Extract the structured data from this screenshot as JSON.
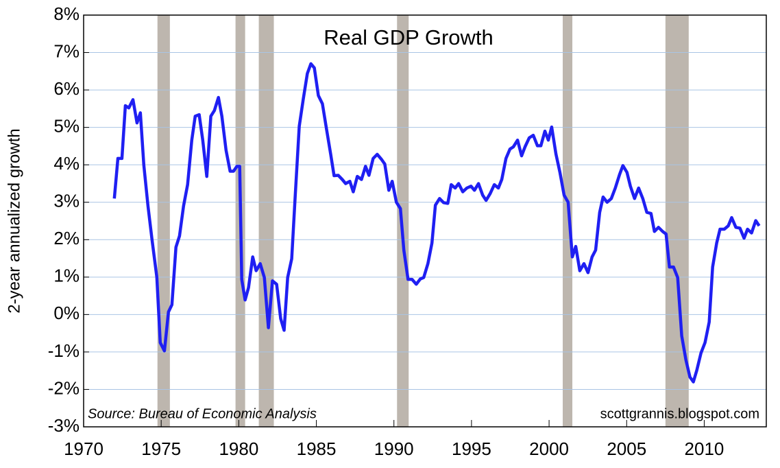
{
  "chart_data": {
    "type": "line",
    "title": "Real GDP Growth",
    "y_label": "2-year annualized growth",
    "annotations": [
      "Source:  Bureau of Economic Analysis",
      "scottgrannis.blogspot.com"
    ],
    "color": "#1f1ff2",
    "grid": true,
    "grid_color": "#a9c4e4",
    "shade_color": "#bdb6ae",
    "xlim": [
      1970,
      2014
    ],
    "ylim": [
      -3,
      8
    ],
    "xticks": [
      1970,
      1975,
      1980,
      1985,
      1990,
      1995,
      2000,
      2005,
      2010
    ],
    "yticks": [
      {
        "value": -3,
        "label": "-3%"
      },
      {
        "value": -2,
        "label": "-2%"
      },
      {
        "value": -1,
        "label": "-1%"
      },
      {
        "value": 0,
        "label": "0%"
      },
      {
        "value": 1,
        "label": "1%"
      },
      {
        "value": 2,
        "label": "2%"
      },
      {
        "value": 3,
        "label": "3%"
      },
      {
        "value": 4,
        "label": "4%"
      },
      {
        "value": 5,
        "label": "5%"
      },
      {
        "value": 6,
        "label": "6%"
      },
      {
        "value": 7,
        "label": "7%"
      },
      {
        "value": 8,
        "label": "8%"
      }
    ],
    "shaded_periods": [
      [
        1974.76,
        1975.56
      ],
      [
        1979.79,
        1980.41
      ],
      [
        1981.29,
        1982.26
      ],
      [
        1990.2,
        1990.95
      ],
      [
        2000.88,
        2001.5
      ],
      [
        2007.5,
        2009.0
      ]
    ],
    "x": [
      1971.98,
      1972.21,
      1972.47,
      1972.69,
      1972.91,
      1973.18,
      1973.44,
      1973.66,
      1973.88,
      1974.15,
      1974.41,
      1974.72,
      1974.94,
      1975.21,
      1975.47,
      1975.69,
      1975.95,
      1976.18,
      1976.44,
      1976.7,
      1976.97,
      1977.19,
      1977.45,
      1977.68,
      1977.94,
      1978.2,
      1978.43,
      1978.69,
      1978.91,
      1979.18,
      1979.44,
      1979.66,
      1979.88,
      1980.06,
      1980.19,
      1980.41,
      1980.63,
      1980.9,
      1981.12,
      1981.38,
      1981.65,
      1981.91,
      1982.17,
      1982.44,
      1982.7,
      1982.92,
      1983.15,
      1983.41,
      1983.63,
      1983.9,
      1984.16,
      1984.42,
      1984.65,
      1984.87,
      1985.13,
      1985.39,
      1985.66,
      1985.92,
      1986.14,
      1986.41,
      1986.67,
      1986.89,
      1987.16,
      1987.38,
      1987.64,
      1987.91,
      1988.17,
      1988.39,
      1988.66,
      1988.92,
      1989.19,
      1989.41,
      1989.67,
      1989.89,
      1990.16,
      1990.42,
      1990.64,
      1990.91,
      1991.17,
      1991.44,
      1991.7,
      1991.92,
      1992.19,
      1992.45,
      1992.67,
      1992.94,
      1993.2,
      1993.47,
      1993.69,
      1993.95,
      1994.17,
      1994.44,
      1994.7,
      1994.97,
      1995.19,
      1995.45,
      1995.72,
      1995.94,
      1996.2,
      1996.47,
      1996.73,
      1996.95,
      1997.22,
      1997.48,
      1997.7,
      1997.97,
      1998.23,
      1998.45,
      1998.72,
      1998.98,
      1999.25,
      1999.47,
      1999.73,
      1999.95,
      2000.17,
      2000.44,
      2000.7,
      2000.97,
      2001.23,
      2001.5,
      2001.72,
      2001.98,
      2002.25,
      2002.51,
      2002.77,
      2003.0,
      2003.26,
      2003.48,
      2003.74,
      2004.01,
      2004.27,
      2004.54,
      2004.76,
      2005.02,
      2005.24,
      2005.51,
      2005.77,
      2006.04,
      2006.3,
      2006.57,
      2006.79,
      2007.05,
      2007.32,
      2007.54,
      2007.76,
      2008.02,
      2008.29,
      2008.55,
      2008.82,
      2009.08,
      2009.3,
      2009.52,
      2009.79,
      2010.05,
      2010.32,
      2010.54,
      2010.8,
      2011.02,
      2011.29,
      2011.55,
      2011.77,
      2012.04,
      2012.3,
      2012.57,
      2012.79,
      2013.05,
      2013.32,
      2013.54
    ],
    "values": [
      3.1,
      4.17,
      4.17,
      5.58,
      5.52,
      5.74,
      5.12,
      5.39,
      4.0,
      2.9,
      2.0,
      1.0,
      -0.75,
      -0.97,
      0.07,
      0.26,
      1.8,
      2.1,
      2.9,
      3.47,
      4.66,
      5.3,
      5.34,
      4.66,
      3.69,
      5.3,
      5.45,
      5.8,
      5.3,
      4.39,
      3.83,
      3.83,
      3.96,
      3.96,
      0.94,
      0.39,
      0.72,
      1.54,
      1.17,
      1.36,
      0.99,
      -0.35,
      0.9,
      0.81,
      -0.11,
      -0.42,
      0.99,
      1.49,
      3.1,
      5.03,
      5.76,
      6.44,
      6.7,
      6.59,
      5.85,
      5.63,
      4.94,
      4.29,
      3.71,
      3.72,
      3.61,
      3.5,
      3.56,
      3.28,
      3.69,
      3.61,
      3.96,
      3.72,
      4.17,
      4.28,
      4.15,
      4.02,
      3.32,
      3.56,
      3.0,
      2.83,
      1.72,
      0.94,
      0.94,
      0.81,
      0.95,
      0.99,
      1.36,
      1.91,
      2.92,
      3.1,
      2.99,
      2.97,
      3.47,
      3.38,
      3.5,
      3.28,
      3.38,
      3.43,
      3.32,
      3.5,
      3.19,
      3.05,
      3.23,
      3.47,
      3.38,
      3.61,
      4.17,
      4.42,
      4.48,
      4.66,
      4.24,
      4.48,
      4.72,
      4.79,
      4.51,
      4.51,
      4.9,
      4.66,
      5.01,
      4.29,
      3.8,
      3.19,
      3.0,
      1.54,
      1.82,
      1.17,
      1.36,
      1.12,
      1.54,
      1.72,
      2.73,
      3.14,
      3.0,
      3.1,
      3.38,
      3.74,
      3.98,
      3.8,
      3.43,
      3.1,
      3.38,
      3.1,
      2.73,
      2.7,
      2.22,
      2.33,
      2.22,
      2.15,
      1.27,
      1.27,
      0.99,
      -0.57,
      -1.21,
      -1.67,
      -1.8,
      -1.49,
      -1.03,
      -0.75,
      -0.2,
      1.27,
      1.91,
      2.28,
      2.28,
      2.37,
      2.59,
      2.33,
      2.31,
      2.04,
      2.28,
      2.18,
      2.51,
      2.37
    ]
  }
}
